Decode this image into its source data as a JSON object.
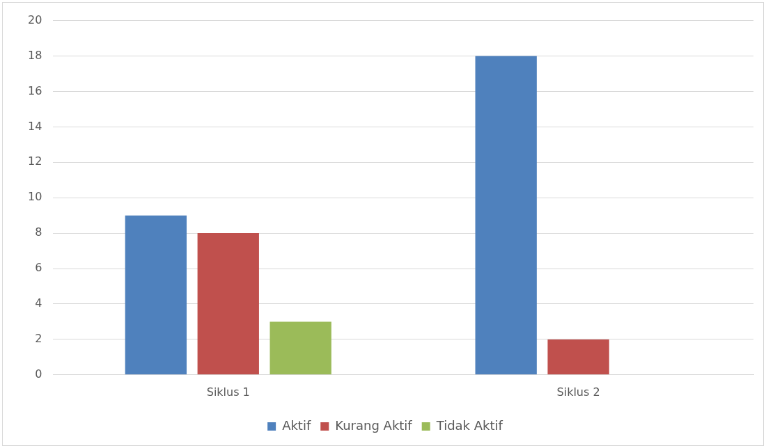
{
  "chart_data": {
    "type": "bar",
    "categories": [
      "Siklus 1",
      "Siklus 2"
    ],
    "series": [
      {
        "name": "Aktif",
        "color": "#4f81bd",
        "values": [
          9,
          18
        ]
      },
      {
        "name": "Kurang Aktif",
        "color": "#c0504d",
        "values": [
          8,
          2
        ]
      },
      {
        "name": "Tidak Aktif",
        "color": "#9bbb59",
        "values": [
          3,
          0
        ]
      }
    ],
    "ylim": [
      0,
      20
    ],
    "yticks": [
      0,
      2,
      4,
      6,
      8,
      10,
      12,
      14,
      16,
      18,
      20
    ],
    "grid": "y",
    "legend": "bottom"
  }
}
